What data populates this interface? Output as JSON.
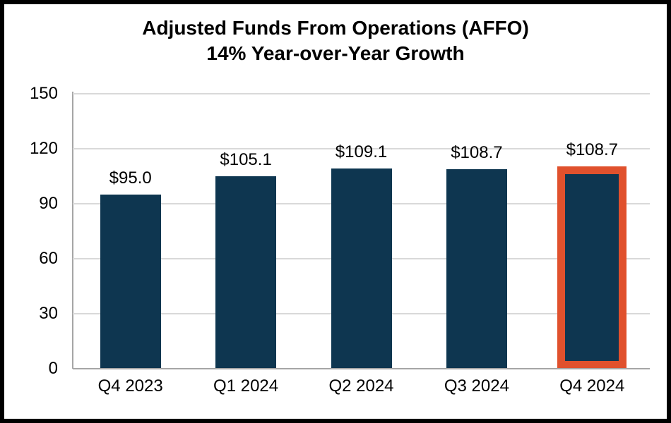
{
  "chart_data": {
    "type": "bar",
    "title_line1": "Adjusted Funds From Operations (AFFO)",
    "title_line2": "14% Year-over-Year Growth",
    "categories": [
      "Q4 2023",
      "Q1 2024",
      "Q2 2024",
      "Q3 2024",
      "Q4 2024"
    ],
    "values": [
      95.0,
      105.1,
      109.1,
      108.7,
      108.7
    ],
    "data_labels": [
      "$95.0",
      "$105.1",
      "$109.1",
      "$108.7",
      "$108.7"
    ],
    "y_ticks": [
      0,
      30,
      60,
      90,
      120,
      150
    ],
    "ylim": [
      0,
      150
    ],
    "grid": true,
    "legend": "none",
    "highlighted_index": 4,
    "colors": {
      "bar_fill": "#0e3650",
      "highlight_border": "#e0512d",
      "gridline": "#d9d9d9",
      "axis_line": "#a6a6a6",
      "text": "#000000",
      "frame_border": "#000000",
      "background": "#ffffff"
    }
  }
}
